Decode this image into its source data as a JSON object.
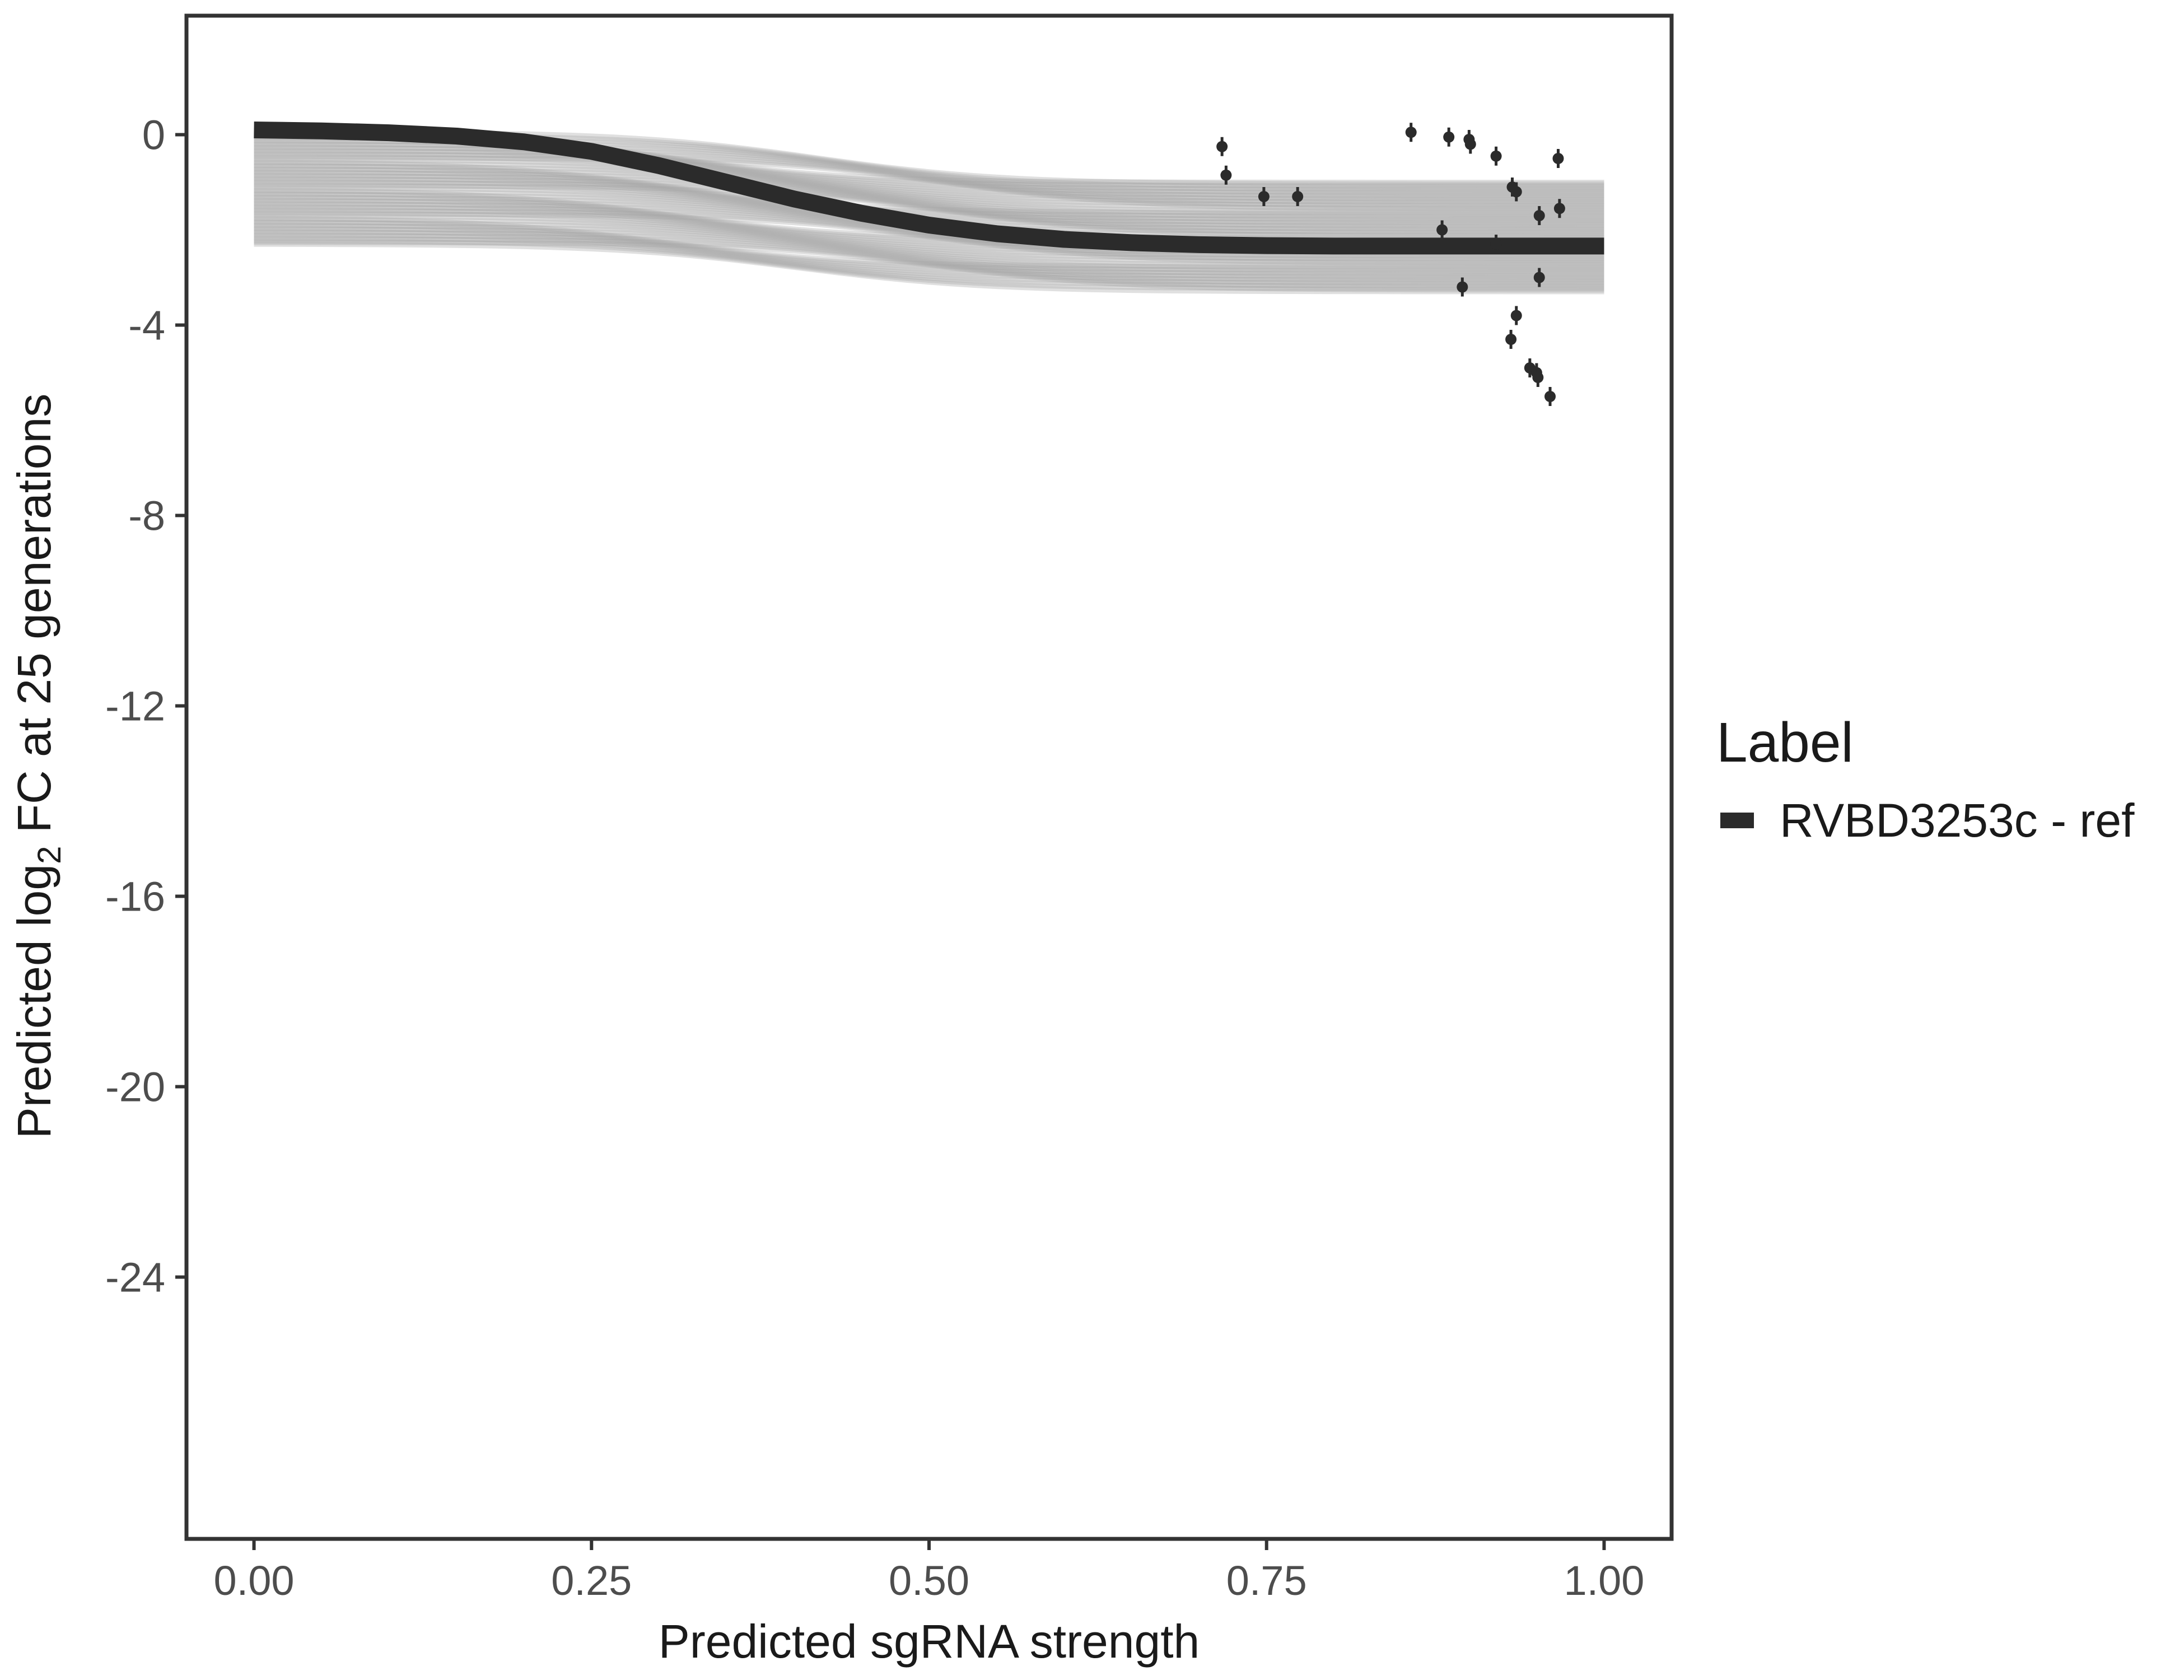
{
  "chart_data": {
    "type": "line",
    "xlabel": "Predicted sgRNA strength",
    "ylabel_prefix": "Predicted  log",
    "ylabel_subscript": "2",
    "ylabel_suffix": " FC at 25 generations",
    "xlim": [
      -0.05,
      1.05
    ],
    "ylim": [
      -29.5,
      2.5
    ],
    "xticks": [
      0.0,
      0.25,
      0.5,
      0.75,
      1.0
    ],
    "xtick_labels": [
      "0.00",
      "0.25",
      "0.50",
      "0.75",
      "1.00"
    ],
    "yticks": [
      0,
      -4,
      -8,
      -12,
      -16,
      -20,
      -24
    ],
    "ytick_labels": [
      "0",
      "-4",
      "-8",
      "-12",
      "-16",
      "-20",
      "-24"
    ],
    "grid": false,
    "legend_position": "right",
    "legend": {
      "title": "Label",
      "entries": [
        {
          "label": "RVBD3253c - ref",
          "color": "#2b2b2b"
        }
      ]
    },
    "series": [
      {
        "name": "RVBD3253c - ref",
        "color": "#2b2b2b",
        "x": [
          0.0,
          0.05,
          0.1,
          0.15,
          0.2,
          0.25,
          0.3,
          0.35,
          0.4,
          0.45,
          0.5,
          0.55,
          0.6,
          0.65,
          0.7,
          0.75,
          0.8,
          0.85,
          0.9,
          0.95,
          1.0
        ],
        "y": [
          0.1,
          0.08,
          0.04,
          -0.03,
          -0.15,
          -0.35,
          -0.65,
          -1.0,
          -1.35,
          -1.65,
          -1.9,
          -2.08,
          -2.2,
          -2.27,
          -2.31,
          -2.33,
          -2.34,
          -2.34,
          -2.34,
          -2.34,
          -2.34
        ]
      }
    ],
    "posterior_band": {
      "color": "#a6a6a6",
      "upper_start": 0.1,
      "upper_end": -1.0,
      "lower_start": -2.3,
      "lower_end": -3.3
    },
    "points": [
      {
        "x": 0.717,
        "y": -0.25,
        "err": 0.2
      },
      {
        "x": 0.72,
        "y": -0.85,
        "err": 0.2
      },
      {
        "x": 0.748,
        "y": -1.3,
        "err": 0.2
      },
      {
        "x": 0.773,
        "y": -1.3,
        "err": 0.2
      },
      {
        "x": 0.857,
        "y": 0.05,
        "err": 0.2
      },
      {
        "x": 0.88,
        "y": -2.0,
        "err": 0.2
      },
      {
        "x": 0.885,
        "y": -0.05,
        "err": 0.2
      },
      {
        "x": 0.895,
        "y": -3.2,
        "err": 0.2
      },
      {
        "x": 0.9,
        "y": -0.1,
        "err": 0.2
      },
      {
        "x": 0.901,
        "y": -0.2,
        "err": 0.2
      },
      {
        "x": 0.92,
        "y": -0.45,
        "err": 0.2
      },
      {
        "x": 0.92,
        "y": -2.3,
        "err": 0.2
      },
      {
        "x": 0.931,
        "y": -4.3,
        "err": 0.2
      },
      {
        "x": 0.932,
        "y": -1.1,
        "err": 0.2
      },
      {
        "x": 0.935,
        "y": -1.2,
        "err": 0.2
      },
      {
        "x": 0.935,
        "y": -3.8,
        "err": 0.2
      },
      {
        "x": 0.945,
        "y": -4.9,
        "err": 0.2
      },
      {
        "x": 0.95,
        "y": -5.0,
        "err": 0.2
      },
      {
        "x": 0.951,
        "y": -5.1,
        "err": 0.2
      },
      {
        "x": 0.952,
        "y": -1.7,
        "err": 0.2
      },
      {
        "x": 0.952,
        "y": -3.0,
        "err": 0.2
      },
      {
        "x": 0.96,
        "y": -5.5,
        "err": 0.2
      },
      {
        "x": 0.966,
        "y": -0.5,
        "err": 0.2
      },
      {
        "x": 0.967,
        "y": -1.55,
        "err": 0.2
      }
    ]
  }
}
